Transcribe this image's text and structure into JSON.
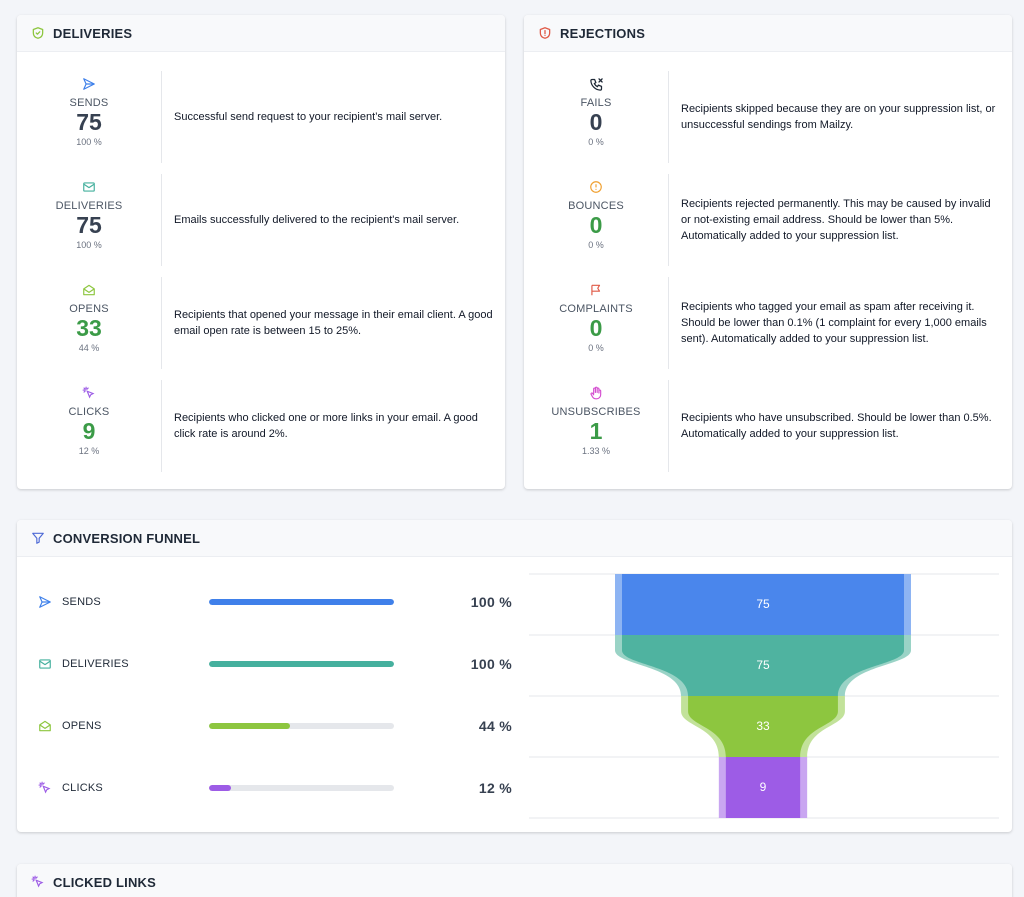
{
  "deliveries": {
    "title": "DELIVERIES",
    "items": [
      {
        "label": "SENDS",
        "value": "75",
        "pct": "100 %",
        "desc": "Successful send request to your recipient’s mail server.",
        "color": "#374151",
        "icon": "send-icon"
      },
      {
        "label": "DELIVERIES",
        "value": "75",
        "pct": "100 %",
        "desc": "Emails successfully delivered to the recipient's mail server.",
        "color": "#374151",
        "icon": "mail-icon"
      },
      {
        "label": "OPENS",
        "value": "33",
        "pct": "44 %",
        "desc": "Recipients that opened your message in their email client. A good email open rate is between 15 to 25%.",
        "color": "#3b9b47",
        "icon": "mail-open-icon"
      },
      {
        "label": "CLICKS",
        "value": "9",
        "pct": "12 %",
        "desc": "Recipients who clicked one or more links in your email. A good click rate is around 2%.",
        "color": "#3b9b47",
        "icon": "click-icon"
      }
    ]
  },
  "rejections": {
    "title": "REJECTIONS",
    "items": [
      {
        "label": "FAILS",
        "value": "0",
        "pct": "0 %",
        "desc": "Recipients skipped because they are on your suppression list, or unsuccessful sendings from Mailzy.",
        "color": "#374151",
        "icon": "phone-x-icon"
      },
      {
        "label": "BOUNCES",
        "value": "0",
        "pct": "0 %",
        "desc": "Recipients rejected permanently. This may be caused by invalid or not-existing email address. Should be lower than 5%. Automatically added to your suppression list.",
        "color": "#3b9b47",
        "icon": "alert-circle-icon"
      },
      {
        "label": "COMPLAINTS",
        "value": "0",
        "pct": "0 %",
        "desc": "Recipients who tagged your email as spam after receiving it. Should be lower than 0.1% (1 complaint for every 1,000 emails sent). Automatically added to your suppression list.",
        "color": "#3b9b47",
        "icon": "flag-icon"
      },
      {
        "label": "UNSUBSCRIBES",
        "value": "1",
        "pct": "1.33 %",
        "desc": "Recipients who have unsubscribed. Should be lower than 0.5%. Automatically added to your suppression list.",
        "color": "#3b9b47",
        "icon": "hand-icon"
      }
    ]
  },
  "funnel": {
    "title": "CONVERSION FUNNEL",
    "rows": [
      {
        "label": "SENDS",
        "pct_text": "100 %",
        "fill": 1.0,
        "color": "#3f80ea",
        "icon": "send-icon"
      },
      {
        "label": "DELIVERIES",
        "pct_text": "100 %",
        "fill": 1.0,
        "color": "#45b09e",
        "icon": "mail-icon"
      },
      {
        "label": "OPENS",
        "pct_text": "44 %",
        "fill": 0.44,
        "color": "#8dc63f",
        "icon": "mail-open-icon"
      },
      {
        "label": "CLICKS",
        "pct_text": "12 %",
        "fill": 0.12,
        "color": "#9d5ce6",
        "icon": "click-icon"
      }
    ],
    "stages": [
      {
        "value": 75,
        "label": "75",
        "color": "#4a86ec",
        "halo": "#8db4f3"
      },
      {
        "value": 75,
        "label": "75",
        "color": "#4fb3a0",
        "halo": "#9ad3c6"
      },
      {
        "value": 33,
        "label": "33",
        "color": "#8dc63f",
        "halo": "#c2e29a"
      },
      {
        "value": 9,
        "label": "9",
        "color": "#9d5ce6",
        "halo": "#c9a6f1"
      }
    ]
  },
  "clicked_links": {
    "title": "CLICKED LINKS"
  }
}
